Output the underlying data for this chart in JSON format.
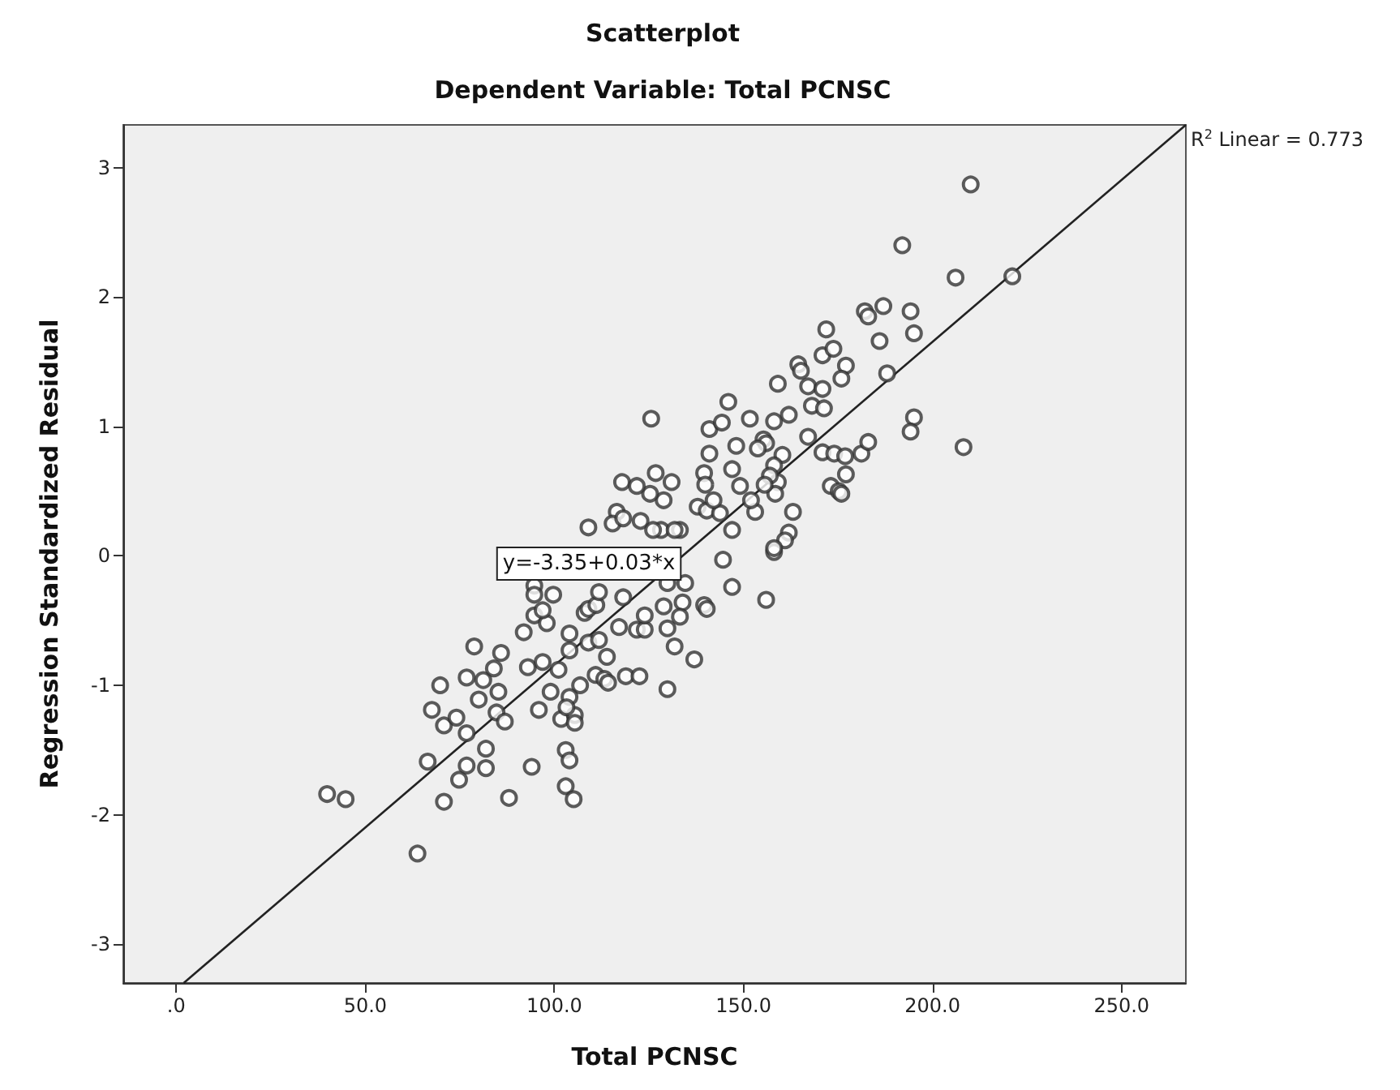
{
  "chart_data": {
    "type": "scatter",
    "title": "Scatterplot",
    "subtitle": "Dependent Variable: Total PCNSC",
    "xlabel": "Total PCNSC",
    "ylabel": "Regression Standardized Residual",
    "xlim": [
      -14,
      267
    ],
    "ylim": [
      -3.3,
      3.33
    ],
    "xticks": [
      {
        "value": 0,
        "label": ".0"
      },
      {
        "value": 50,
        "label": "50.0"
      },
      {
        "value": 100,
        "label": "100.0"
      },
      {
        "value": 150,
        "label": "150.0"
      },
      {
        "value": 200,
        "label": "200.0"
      },
      {
        "value": 250,
        "label": "250.0"
      }
    ],
    "yticks": [
      -3,
      -2,
      -1,
      0,
      1,
      2,
      3
    ],
    "grid": false,
    "marker": "circle",
    "annotations": [
      "y=-3.35+0.03*x",
      "R$^{2}$ Linear = 0.773"
    ],
    "series": [
      {
        "color": "#333333",
        "x": [
          39.9,
          44.8,
          63.8,
          66.5,
          70.8,
          69.8,
          67.6,
          70.8,
          74.1,
          76.8,
          74.8,
          76.8,
          81.9,
          81.9,
          88.0,
          94.0,
          78.8,
          76.8,
          81.2,
          80.0,
          84.0,
          85.9,
          85.2,
          84.7,
          86.9,
          91.9,
          93.0,
          95.9,
          96.9,
          94.7,
          98.0,
          94.7,
          94.7,
          99.7,
          96.9,
          99.0,
          101.1,
          104.0,
          104.0,
          106.8,
          104.0,
          101.8,
          105.4,
          105.4,
          103.2,
          103.0,
          104.0,
          103.0,
          105.1,
          108.0,
          109.0,
          111.1,
          111.8,
          109.0,
          111.8,
          113.9,
          110.9,
          113.2,
          114.2,
          117.1,
          118.2,
          118.9,
          122.5,
          121.8,
          123.9,
          123.9,
          128.9,
          129.9,
          129.9,
          131.8,
          129.9,
          147.0,
          156.0,
          158.1,
          133.9,
          133.2,
          139.6,
          140.3,
          137.0,
          134.6,
          144.6,
          210.1,
          192.0,
          206.1,
          221.1,
          182.1,
          183.0,
          187.0,
          194.2,
          195.1,
          186.0,
          188.0,
          171.9,
          170.9,
          173.8,
          177.1,
          175.9,
          164.5,
          165.2,
          159.1,
          167.1,
          170.9,
          168.1,
          171.3,
          146.0,
          151.7,
          158.1,
          162.0,
          141.0,
          144.3,
          125.6,
          155.3,
          156.0,
          153.8,
          148.1,
          141.0,
          147.0,
          160.3,
          158.1,
          167.1,
          170.9,
          174.0,
          176.9,
          181.2,
          183.0,
          177.1,
          173.1,
          175.2,
          175.9,
          195.1,
          194.2,
          208.2,
          163.1,
          162.0,
          161.0,
          158.1,
          153.1,
          149.1,
          159.1,
          157.0,
          158.4,
          155.6,
          126.8,
          131.0,
          128.9,
          125.3,
          139.6,
          139.9,
          137.9,
          140.3,
          143.8,
          147.0,
          152.0,
          142.1,
          133.2,
          128.2,
          117.9,
          121.8,
          116.5,
          115.4,
          118.2,
          122.8,
          126.1,
          109.0,
          131.8
        ],
        "values": [
          -1.84,
          -1.88,
          -2.3,
          -1.59,
          -1.9,
          -1.0,
          -1.19,
          -1.31,
          -1.25,
          -1.37,
          -1.73,
          -1.62,
          -1.64,
          -1.49,
          -1.87,
          -1.63,
          -0.7,
          -0.94,
          -0.96,
          -1.11,
          -0.87,
          -0.75,
          -1.05,
          -1.21,
          -1.28,
          -0.59,
          -0.86,
          -1.19,
          -0.82,
          -0.46,
          -0.52,
          -0.23,
          -0.3,
          -0.3,
          -0.42,
          -1.05,
          -0.88,
          -0.6,
          -0.73,
          -1.0,
          -1.09,
          -1.26,
          -1.23,
          -1.29,
          -1.17,
          -1.5,
          -1.58,
          -1.78,
          -1.88,
          -0.44,
          -0.41,
          -0.38,
          -0.28,
          -0.67,
          -0.65,
          -0.78,
          -0.92,
          -0.95,
          -0.98,
          -0.55,
          -0.32,
          -0.93,
          -0.93,
          -0.57,
          -0.57,
          -0.46,
          -0.39,
          -0.56,
          -1.03,
          -0.7,
          -0.21,
          -0.24,
          -0.34,
          0.03,
          -0.36,
          -0.47,
          -0.38,
          -0.41,
          -0.8,
          -0.21,
          -0.03,
          2.87,
          2.4,
          2.15,
          2.16,
          1.89,
          1.85,
          1.93,
          1.89,
          1.72,
          1.66,
          1.41,
          1.75,
          1.55,
          1.6,
          1.47,
          1.37,
          1.48,
          1.43,
          1.33,
          1.31,
          1.29,
          1.16,
          1.14,
          1.19,
          1.06,
          1.04,
          1.09,
          0.98,
          1.03,
          1.06,
          0.9,
          0.87,
          0.83,
          0.85,
          0.79,
          0.67,
          0.78,
          0.7,
          0.92,
          0.8,
          0.79,
          0.77,
          0.79,
          0.88,
          0.63,
          0.54,
          0.5,
          0.48,
          1.07,
          0.96,
          0.84,
          0.34,
          0.18,
          0.12,
          0.06,
          0.34,
          0.54,
          0.57,
          0.62,
          0.48,
          0.55,
          0.64,
          0.57,
          0.43,
          0.48,
          0.64,
          0.55,
          0.38,
          0.35,
          0.33,
          0.2,
          0.43,
          0.43,
          0.2,
          0.2,
          0.57,
          0.54,
          0.34,
          0.25,
          0.29,
          0.27,
          0.2,
          0.22,
          0.2
        ]
      },
      {
        "type": "line",
        "color": "#222222",
        "marker": "none",
        "line_style": "solid",
        "x": [
          2,
          267
        ],
        "values": [
          -3.3,
          3.33
        ]
      }
    ]
  }
}
